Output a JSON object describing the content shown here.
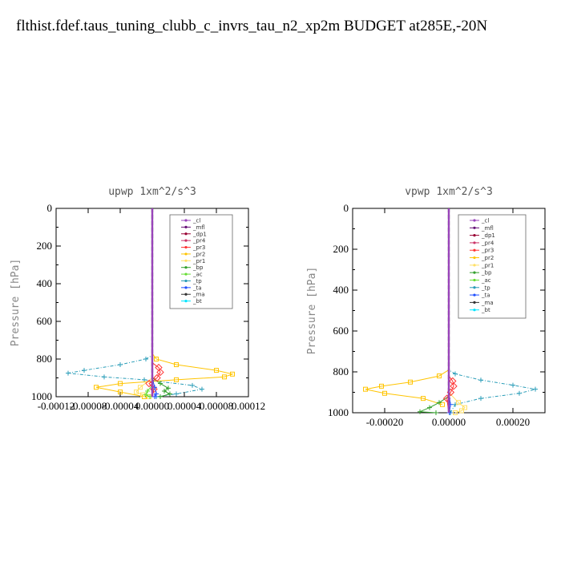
{
  "page_title": "flthist.fdef.taus_tuning_clubb_c_invrs_tau_n2_xp2m  BUDGET at285E,-20N",
  "chart_data": [
    {
      "type": "line",
      "title": "upwp   1xm^2/s^3",
      "ylabel": "Pressure [hPa]",
      "xlabel": "",
      "xlim": [
        -0.00012,
        0.00012
      ],
      "ylim": [
        1000,
        0
      ],
      "xticks": [
        -0.00012,
        -8e-05,
        -4e-05,
        0.0,
        4e-05,
        8e-05,
        0.00012
      ],
      "xtick_labels": [
        "-0.00012",
        "-0.00008",
        "-0.00004",
        "0.00000",
        "0.00004",
        "0.00008",
        "0.00012"
      ],
      "yticks": [
        0,
        200,
        400,
        600,
        800,
        1000
      ],
      "ytick_labels": [
        "0",
        "200",
        "400",
        "600",
        "800",
        "1000"
      ],
      "grid": false,
      "legend_position": "top-right",
      "legend": [
        "_cl",
        "_mfl",
        "_dp1",
        "_pr4",
        "_pr3",
        "_pr2",
        "_pr1",
        "_bp",
        "_ac",
        "_tp",
        "_ta",
        "_ma",
        "_bt"
      ],
      "series": [
        {
          "name": "_tp",
          "color": "#2a9db8",
          "x": [
            0,
            0,
            -8e-06,
            -4e-05,
            -8.5e-05,
            -0.000105,
            -6e-05,
            -1e-05,
            5e-05,
            6.2e-05,
            3e-05,
            5e-06
          ],
          "y": [
            0,
            780,
            800,
            830,
            860,
            875,
            895,
            910,
            940,
            960,
            985,
            1000
          ]
        },
        {
          "name": "_pr2",
          "color": "#ffc400",
          "x": [
            0,
            0,
            5e-06,
            3e-05,
            8e-05,
            0.0001,
            9e-05,
            3e-05,
            -4e-05,
            -7e-05,
            -4e-05,
            -1e-05
          ],
          "y": [
            0,
            770,
            800,
            830,
            860,
            880,
            895,
            910,
            930,
            950,
            975,
            1000
          ]
        },
        {
          "name": "_pr1",
          "color": "#ffe066",
          "x": [
            0,
            0,
            -1.5e-05,
            -2e-05,
            -1.2e-05,
            -4e-06
          ],
          "y": [
            0,
            900,
            950,
            975,
            990,
            1000
          ]
        },
        {
          "name": "_bp",
          "color": "#33a02c",
          "x": [
            0,
            0,
            1e-05,
            2e-05,
            1.5e-05,
            2.2e-05,
            1e-05
          ],
          "y": [
            0,
            900,
            930,
            955,
            970,
            985,
            1000
          ]
        },
        {
          "name": "_ac",
          "color": "#66dd33",
          "x": [
            0,
            0,
            -6e-06,
            -8e-06,
            -3e-06
          ],
          "y": [
            0,
            940,
            970,
            990,
            1000
          ]
        },
        {
          "name": "_pr3",
          "color": "#ff3333",
          "x": [
            0,
            0,
            8e-06,
            1e-05,
            6e-06,
            -4e-06,
            2e-06,
            0
          ],
          "y": [
            0,
            820,
            845,
            870,
            900,
            930,
            960,
            1000
          ]
        },
        {
          "name": "_ta",
          "color": "#1f4fff",
          "x": [
            0,
            0,
            3e-06,
            5e-06,
            3e-06
          ],
          "y": [
            0,
            900,
            950,
            985,
            1000
          ]
        },
        {
          "name": "_ma",
          "color": "#333333",
          "x": [
            0,
            0
          ],
          "y": [
            0,
            1000
          ]
        },
        {
          "name": "_mfl",
          "color": "#661177",
          "x": [
            0,
            0
          ],
          "y": [
            0,
            1000
          ]
        },
        {
          "name": "_cl",
          "color": "#9944bb",
          "x": [
            0,
            0
          ],
          "y": [
            0,
            1000
          ]
        }
      ]
    },
    {
      "type": "line",
      "title": "vpwp   1xm^2/s^3",
      "ylabel": "Pressure [hPa]",
      "xlabel": "",
      "xlim": [
        -0.0003,
        0.0003
      ],
      "ylim": [
        1000,
        0
      ],
      "xticks": [
        -0.0002,
        0.0,
        0.0002
      ],
      "xtick_labels": [
        "-0.00020",
        "0.00000",
        "0.00020"
      ],
      "yticks": [
        0,
        200,
        400,
        600,
        800,
        1000
      ],
      "ytick_labels": [
        "0",
        "200",
        "400",
        "600",
        "800",
        "1000"
      ],
      "grid": false,
      "legend_position": "top-right",
      "legend": [
        "_cl",
        "_mfl",
        "_dp1",
        "_pr4",
        "_pr3",
        "_pr2",
        "_pr1",
        "_bp",
        "_ac",
        "_tp",
        "_ta",
        "_ma",
        "_bt"
      ],
      "series": [
        {
          "name": "_tp",
          "color": "#2a9db8",
          "x": [
            0,
            0,
            2e-05,
            0.0001,
            0.0002,
            0.00027,
            0.00022,
            0.0001,
            2e-05,
            5e-06
          ],
          "y": [
            0,
            790,
            810,
            840,
            865,
            885,
            905,
            930,
            960,
            1000
          ]
        },
        {
          "name": "_pr2",
          "color": "#ffc400",
          "x": [
            0,
            0,
            -3e-05,
            -0.00012,
            -0.00021,
            -0.00026,
            -0.0002,
            -8e-05,
            -2e-05
          ],
          "y": [
            0,
            790,
            820,
            850,
            870,
            885,
            905,
            930,
            960
          ]
        },
        {
          "name": "_pr1",
          "color": "#ffe066",
          "x": [
            0,
            0,
            3e-05,
            5e-05,
            4e-05,
            2e-05
          ],
          "y": [
            0,
            900,
            950,
            975,
            990,
            1000
          ]
        },
        {
          "name": "_bp",
          "color": "#33a02c",
          "x": [
            0,
            0,
            -3e-05,
            -6e-05,
            -9e-05,
            -4e-05
          ],
          "y": [
            0,
            920,
            950,
            975,
            995,
            1000
          ]
        },
        {
          "name": "_pr3",
          "color": "#ff3333",
          "x": [
            0,
            0,
            1.2e-05,
            1.5e-05,
            6e-06,
            -6e-06,
            0
          ],
          "y": [
            0,
            820,
            845,
            870,
            900,
            930,
            1000
          ]
        },
        {
          "name": "_ta",
          "color": "#1f4fff",
          "x": [
            0,
            0,
            5e-06,
            2e-06
          ],
          "y": [
            0,
            900,
            960,
            1000
          ]
        },
        {
          "name": "_ma",
          "color": "#333333",
          "x": [
            0,
            0
          ],
          "y": [
            0,
            1000
          ]
        },
        {
          "name": "_mfl",
          "color": "#661177",
          "x": [
            0,
            0
          ],
          "y": [
            0,
            1000
          ]
        },
        {
          "name": "_cl",
          "color": "#9944bb",
          "x": [
            0,
            0
          ],
          "y": [
            0,
            1000
          ]
        }
      ]
    }
  ],
  "legend_colors": {
    "_cl": "#9944bb",
    "_mfl": "#661177",
    "_dp1": "#990033",
    "_pr4": "#cc3366",
    "_pr3": "#ff3333",
    "_pr2": "#ffc400",
    "_pr1": "#ffe066",
    "_bp": "#33a02c",
    "_ac": "#66dd33",
    "_tp": "#2a9db8",
    "_ta": "#1f4fff",
    "_ma": "#333333",
    "_bt": "#00e5ff"
  }
}
